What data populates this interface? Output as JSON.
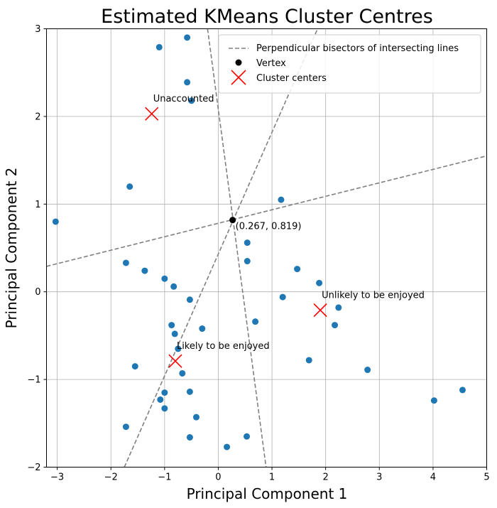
{
  "chart_data": {
    "type": "scatter",
    "title": "Estimated KMeans Cluster Centres",
    "xlabel": "Principal Component 1",
    "ylabel": "Principal Component 2",
    "xlim": [
      -3.2,
      5
    ],
    "ylim": [
      -2,
      3
    ],
    "xticks": [
      -3,
      -2,
      -1,
      0,
      1,
      2,
      3,
      4,
      5
    ],
    "yticks": [
      -2,
      -1,
      0,
      1,
      2,
      3
    ],
    "xtick_labels": [
      "−3",
      "−2",
      "−1",
      "0",
      "1",
      "2",
      "3",
      "4",
      "5"
    ],
    "ytick_labels": [
      "−2",
      "−1",
      "0",
      "1",
      "2",
      "3"
    ],
    "grid": true,
    "legend_position": "top-right",
    "colors": {
      "points": "#1f77b4",
      "centers": "#ff0000",
      "bisectors": "#808080",
      "vertex": "#000000",
      "grid": "#b0b0b0"
    },
    "points": [
      [
        -0.58,
        2.9
      ],
      [
        -1.1,
        2.79
      ],
      [
        -0.58,
        2.39
      ],
      [
        -0.5,
        2.18
      ],
      [
        -1.65,
        1.2
      ],
      [
        -3.03,
        0.8
      ],
      [
        1.17,
        1.05
      ],
      [
        0.54,
        0.56
      ],
      [
        0.54,
        0.35
      ],
      [
        1.47,
        0.26
      ],
      [
        1.88,
        0.1
      ],
      [
        -1.72,
        0.33
      ],
      [
        -1.37,
        0.24
      ],
      [
        -1.0,
        0.15
      ],
      [
        -0.83,
        0.06
      ],
      [
        1.2,
        -0.06
      ],
      [
        2.24,
        -0.18
      ],
      [
        2.17,
        -0.38
      ],
      [
        -0.53,
        -0.09
      ],
      [
        0.69,
        -0.34
      ],
      [
        -0.87,
        -0.38
      ],
      [
        -0.3,
        -0.42
      ],
      [
        -0.81,
        -0.48
      ],
      [
        -0.75,
        -0.65
      ],
      [
        1.69,
        -0.78
      ],
      [
        2.78,
        -0.89
      ],
      [
        -1.55,
        -0.85
      ],
      [
        -0.67,
        -0.93
      ],
      [
        -1.0,
        -1.15
      ],
      [
        -0.53,
        -1.14
      ],
      [
        -1.08,
        -1.23
      ],
      [
        -1.0,
        -1.33
      ],
      [
        4.02,
        -1.24
      ],
      [
        4.55,
        -1.12
      ],
      [
        -0.41,
        -1.43
      ],
      [
        -1.72,
        -1.54
      ],
      [
        0.53,
        -1.65
      ],
      [
        -0.53,
        -1.66
      ],
      [
        0.16,
        -1.77
      ]
    ],
    "vertex": {
      "x": 0.267,
      "y": 0.819,
      "label": "(0.267, 0.819)"
    },
    "centers": [
      {
        "x": -1.24,
        "y": 2.03,
        "label": "Unaccounted"
      },
      {
        "x": 1.9,
        "y": -0.21,
        "label": "Unlikely to be enjoyed"
      },
      {
        "x": -0.8,
        "y": -0.79,
        "label": "Likely to be enjoyed"
      }
    ],
    "bisectors": [
      {
        "x1": -1.75,
        "y1": -2.0,
        "x2": 1.85,
        "y2": 3.0
      },
      {
        "x1": -0.2,
        "y1": 3.0,
        "x2": 0.89,
        "y2": -2.0
      },
      {
        "x1": -3.2,
        "y1": 0.29,
        "x2": 5.0,
        "y2": 1.55
      }
    ],
    "legend": [
      {
        "label": "Perpendicular bisectors of intersecting lines",
        "marker": "dashed-line"
      },
      {
        "label": "Vertex",
        "marker": "dot"
      },
      {
        "label": "Cluster centers",
        "marker": "x"
      }
    ]
  }
}
